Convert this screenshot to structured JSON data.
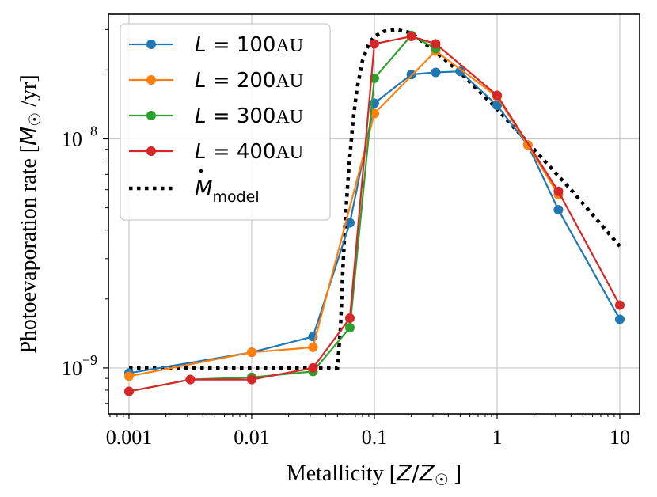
{
  "chart_data": {
    "type": "line",
    "xscale": "log",
    "yscale": "log",
    "xlim": [
      0.00068,
      14.5
    ],
    "ylim": [
      6.3e-10,
      3.5e-08
    ],
    "grid": true,
    "legend_position": "top-left",
    "xlabel_parts": [
      "Metallicity [",
      "Z",
      "/",
      "Z",
      "☉",
      " ]"
    ],
    "ylabel_parts": [
      "Photoevaporation rate [",
      "M",
      "☉",
      " /yr]"
    ],
    "x_ticks": [
      {
        "value": 0.001,
        "label": "0.001"
      },
      {
        "value": 0.01,
        "label": "0.01"
      },
      {
        "value": 0.1,
        "label": "0.1"
      },
      {
        "value": 1,
        "label": "1"
      },
      {
        "value": 10,
        "label": "10"
      }
    ],
    "y_ticks": [
      {
        "value": 1e-09,
        "base": "10",
        "exp": "−9"
      },
      {
        "value": 1e-08,
        "base": "10",
        "exp": "−8"
      }
    ],
    "series": [
      {
        "legend_var": "L",
        "legend_value": " = 100",
        "legend_unit": "AU",
        "color": "#1f77b4",
        "x": [
          0.001,
          0.01,
          0.0316,
          0.0631,
          0.1,
          0.2,
          0.316,
          0.5,
          1,
          1.78,
          3.16,
          10
        ],
        "y": [
          9.5e-10,
          1.17e-09,
          1.37e-09,
          4.3e-09,
          1.43e-08,
          1.91e-08,
          1.95e-08,
          1.97e-08,
          1.4e-08,
          9.4e-09,
          4.9e-09,
          1.63e-09
        ]
      },
      {
        "legend_var": "L",
        "legend_value": " = 200",
        "legend_unit": "AU",
        "color": "#ff7f0e",
        "x": [
          0.001,
          0.01,
          0.0316,
          0.1,
          0.316,
          1,
          1.78,
          3.16
        ],
        "y": [
          9.2e-10,
          1.17e-09,
          1.23e-09,
          1.29e-08,
          2.42e-08,
          1.53e-08,
          9.4e-09,
          5.7e-09
        ]
      },
      {
        "legend_var": "L",
        "legend_value": " = 300",
        "legend_unit": "AU",
        "color": "#2ca02c",
        "x": [
          0.001,
          0.00316,
          0.01,
          0.0316,
          0.0631,
          0.1,
          0.2,
          0.316
        ],
        "y": [
          7.9e-10,
          8.9e-10,
          9.1e-10,
          9.65e-10,
          1.5e-09,
          1.84e-08,
          2.83e-08,
          2.48e-08
        ]
      },
      {
        "legend_var": "L",
        "legend_value": " = 400",
        "legend_unit": "AU",
        "color": "#d62728",
        "x": [
          0.001,
          0.00316,
          0.01,
          0.0316,
          0.0631,
          0.1,
          0.2,
          0.316,
          1,
          3.16,
          10
        ],
        "y": [
          7.9e-10,
          8.9e-10,
          8.9e-10,
          1e-09,
          1.65e-09,
          2.6e-08,
          2.8e-08,
          2.6e-08,
          1.55e-08,
          5.9e-09,
          1.88e-09
        ]
      }
    ],
    "model": {
      "legend_label": "M",
      "legend_sub": "model",
      "color": "#000000",
      "x": [
        0.001,
        0.01,
        0.02,
        0.04,
        0.05,
        0.053,
        0.055,
        0.058,
        0.062,
        0.067,
        0.072,
        0.08,
        0.09,
        0.1,
        0.12,
        0.15,
        0.2,
        0.3,
        0.5,
        1,
        2,
        4,
        10
      ],
      "y": [
        1e-09,
        1e-09,
        1e-09,
        1e-09,
        1e-09,
        1.5e-09,
        2.5e-09,
        4.5e-09,
        7.5e-09,
        1.2e-08,
        1.65e-08,
        2.2e-08,
        2.6e-08,
        2.8e-08,
        2.95e-08,
        3e-08,
        2.9e-08,
        2.45e-08,
        1.95e-08,
        1.35e-08,
        9e-09,
        6e-09,
        3.4e-09
      ]
    }
  }
}
